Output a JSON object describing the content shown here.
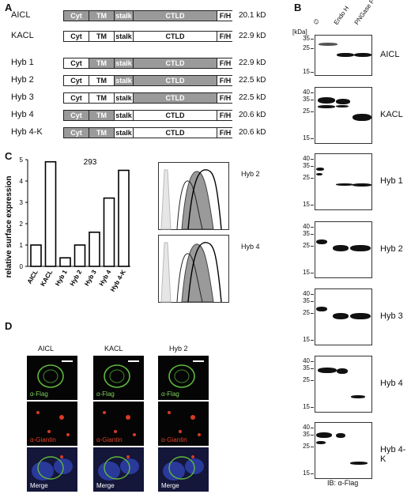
{
  "panels": {
    "A": "A",
    "B": "B",
    "C": "C",
    "D": "D"
  },
  "domain_rows": [
    {
      "name": "AICL",
      "mw": "20.1 kD",
      "segs": [
        [
          "Cyt",
          "g"
        ],
        [
          "TM",
          "g"
        ],
        [
          "stalk",
          "g"
        ],
        [
          "CTLD",
          "g"
        ],
        [
          "F/H",
          "w"
        ]
      ]
    },
    {
      "name": "KACL",
      "mw": "22.9 kD",
      "segs": [
        [
          "Cyt",
          "w"
        ],
        [
          "TM",
          "w"
        ],
        [
          "stalk",
          "w"
        ],
        [
          "CTLD",
          "w"
        ],
        [
          "F/H",
          "w"
        ]
      ]
    },
    {
      "name": "Hyb 1",
      "mw": "22.9 kD",
      "segs": [
        [
          "Cyt",
          "w"
        ],
        [
          "TM",
          "g"
        ],
        [
          "stalk",
          "g"
        ],
        [
          "CTLD",
          "g"
        ],
        [
          "F/H",
          "w"
        ]
      ]
    },
    {
      "name": "Hyb 2",
      "mw": "22.5 kD",
      "segs": [
        [
          "Cyt",
          "w"
        ],
        [
          "TM",
          "w"
        ],
        [
          "stalk",
          "g"
        ],
        [
          "CTLD",
          "g"
        ],
        [
          "F/H",
          "w"
        ]
      ]
    },
    {
      "name": "Hyb 3",
      "mw": "22.5 kD",
      "segs": [
        [
          "Cyt",
          "w"
        ],
        [
          "TM",
          "w"
        ],
        [
          "stalk",
          "w"
        ],
        [
          "CTLD",
          "g"
        ],
        [
          "F/H",
          "w"
        ]
      ]
    },
    {
      "name": "Hyb 4",
      "mw": "20.6 kD",
      "segs": [
        [
          "Cyt",
          "g"
        ],
        [
          "TM",
          "g"
        ],
        [
          "stalk",
          "w"
        ],
        [
          "CTLD",
          "w"
        ],
        [
          "F/H",
          "w"
        ]
      ]
    },
    {
      "name": "Hyb 4-K",
      "mw": "20.6 kD",
      "segs": [
        [
          "Cyt",
          "g"
        ],
        [
          "TM",
          "g"
        ],
        [
          "stalk",
          "w"
        ],
        [
          "CTLD",
          "w"
        ],
        [
          "F/H",
          "w"
        ]
      ]
    }
  ],
  "blot": {
    "kda_label": "[kDa]",
    "lanes": [
      "∅",
      "Endo H",
      "PNGase F"
    ],
    "footer": "IB: α-Flag",
    "blots": [
      {
        "label": "AICL",
        "markers": [
          "35",
          "25",
          "15"
        ]
      },
      {
        "label": "KACL",
        "markers": [
          "40",
          "35",
          "25",
          "15"
        ]
      },
      {
        "label": "Hyb 1",
        "markers": [
          "40",
          "35",
          "25",
          "15"
        ]
      },
      {
        "label": "Hyb 2",
        "markers": [
          "40",
          "35",
          "25",
          "15"
        ]
      },
      {
        "label": "Hyb 3",
        "markers": [
          "40",
          "35",
          "25",
          "15"
        ]
      },
      {
        "label": "Hyb 4",
        "markers": [
          "40",
          "35",
          "25",
          "15"
        ]
      },
      {
        "label": "Hyb 4-K",
        "markers": [
          "40",
          "35",
          "25",
          "15"
        ]
      }
    ]
  },
  "chart_data": {
    "type": "bar",
    "title": "293",
    "ylabel": "relative surface expression",
    "xlabel": "",
    "categories": [
      "AICL",
      "KACL",
      "Hyb 1",
      "Hyb 2",
      "Hyb 3",
      "Hyb 4",
      "Hyb 4-K"
    ],
    "values": [
      1.0,
      4.9,
      0.4,
      1.0,
      1.6,
      3.2,
      4.5
    ],
    "ylim": [
      0,
      5
    ],
    "yticks": [
      0,
      1,
      2,
      3,
      4,
      5
    ],
    "grid": false,
    "bar_fill": "#ffffff",
    "bar_stroke": "#000000"
  },
  "histograms": [
    {
      "label": "Hyb 2"
    },
    {
      "label": "Hyb 4"
    }
  ],
  "micro": {
    "col_titles": [
      "AICL",
      "KACL",
      "Hyb 2"
    ],
    "row_labels": [
      "α-Flag",
      "α-Giantin",
      "Merge"
    ],
    "colors": {
      "flag": "#7fd35a",
      "giantin": "#e0402a",
      "merge": "#ffffff"
    }
  }
}
